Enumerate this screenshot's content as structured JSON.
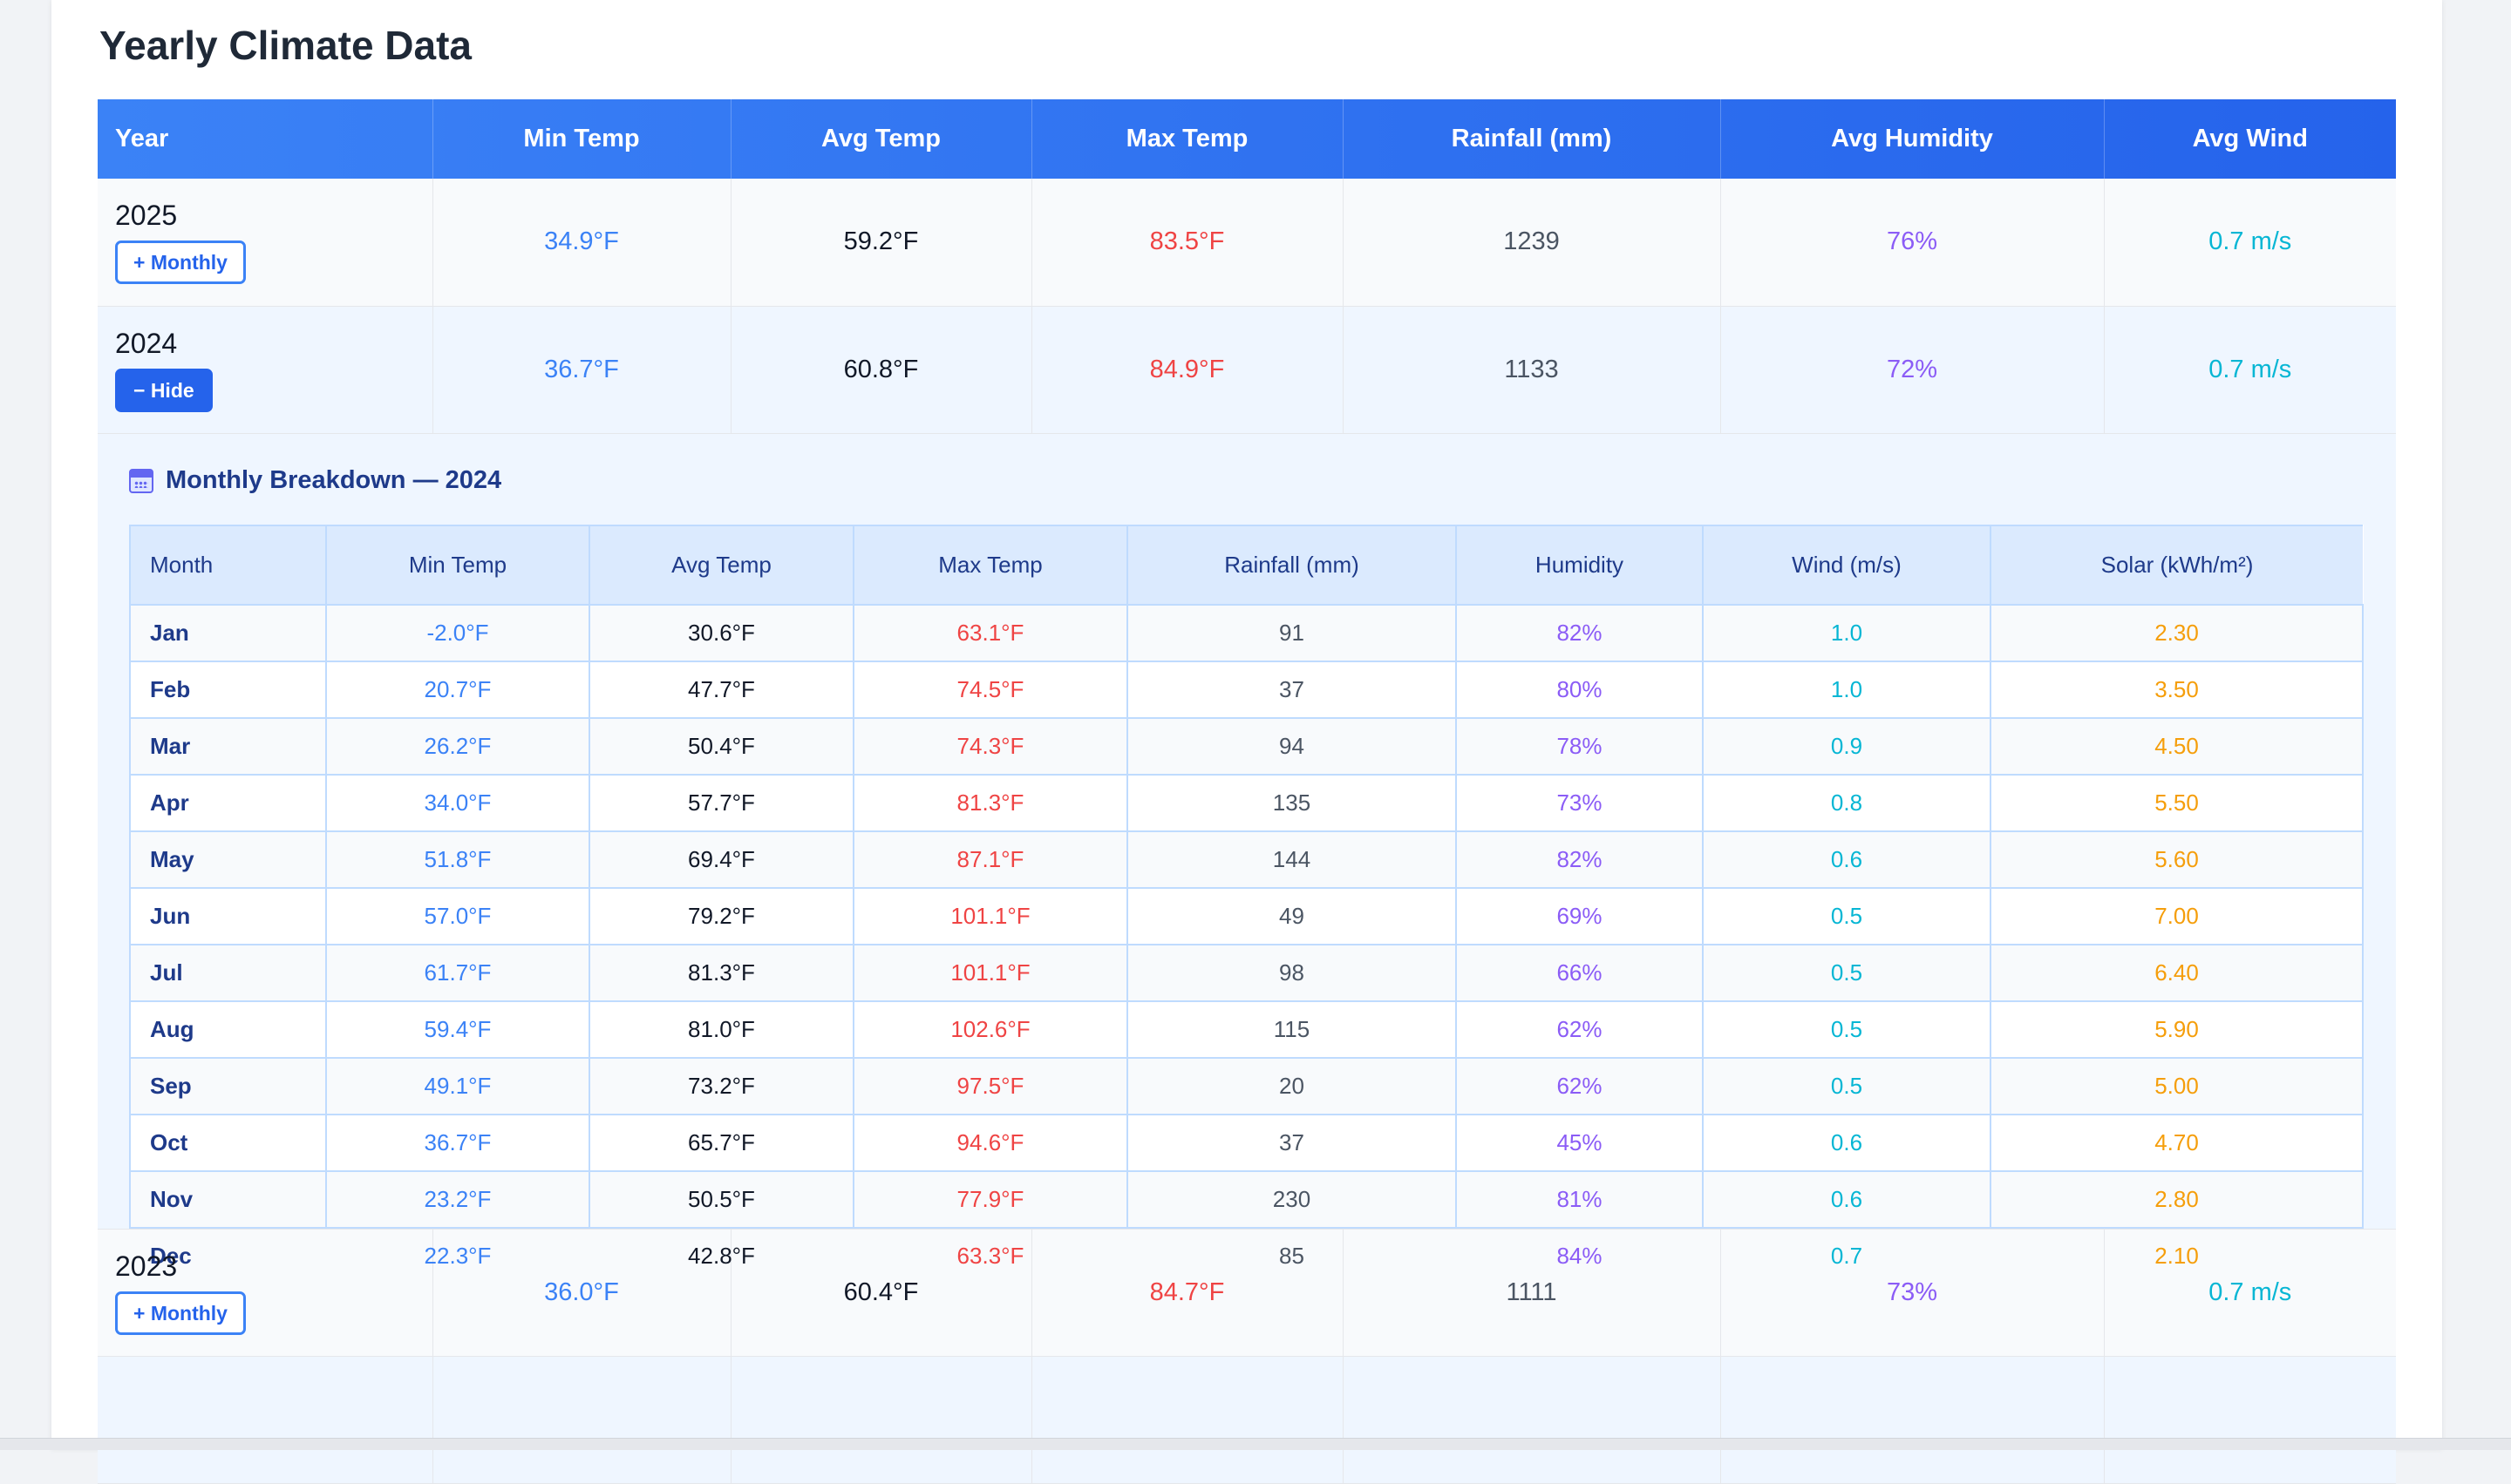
{
  "title": "Yearly Climate Data",
  "headers": [
    "Year",
    "Min Temp",
    "Avg Temp",
    "Max Temp",
    "Rainfall (mm)",
    "Avg Humidity",
    "Avg Wind"
  ],
  "years": [
    {
      "year": "2025",
      "button": "+ Monthly",
      "min": "34.9°F",
      "avg": "59.2°F",
      "max": "83.5°F",
      "rain": "1239",
      "humidity": "76%",
      "wind": "0.7 m/s"
    },
    {
      "year": "2024",
      "button": "− Hide",
      "min": "36.7°F",
      "avg": "60.8°F",
      "max": "84.9°F",
      "rain": "1133",
      "humidity": "72%",
      "wind": "0.7 m/s"
    },
    {
      "year": "2023",
      "button": "+ Monthly",
      "min": "36.0°F",
      "avg": "60.4°F",
      "max": "84.7°F",
      "rain": "1111",
      "humidity": "73%",
      "wind": "0.7 m/s"
    }
  ],
  "breakdown": {
    "title": "Monthly Breakdown — 2024",
    "icon": "calendar-icon",
    "headers": [
      "Month",
      "Min Temp",
      "Avg Temp",
      "Max Temp",
      "Rainfall (mm)",
      "Humidity",
      "Wind (m/s)",
      "Solar (kWh/m²)"
    ],
    "months": [
      {
        "month": "Jan",
        "min": "-2.0°F",
        "avg": "30.6°F",
        "max": "63.1°F",
        "rain": "91",
        "humidity": "82%",
        "wind": "1.0",
        "solar": "2.30"
      },
      {
        "month": "Feb",
        "min": "20.7°F",
        "avg": "47.7°F",
        "max": "74.5°F",
        "rain": "37",
        "humidity": "80%",
        "wind": "1.0",
        "solar": "3.50"
      },
      {
        "month": "Mar",
        "min": "26.2°F",
        "avg": "50.4°F",
        "max": "74.3°F",
        "rain": "94",
        "humidity": "78%",
        "wind": "0.9",
        "solar": "4.50"
      },
      {
        "month": "Apr",
        "min": "34.0°F",
        "avg": "57.7°F",
        "max": "81.3°F",
        "rain": "135",
        "humidity": "73%",
        "wind": "0.8",
        "solar": "5.50"
      },
      {
        "month": "May",
        "min": "51.8°F",
        "avg": "69.4°F",
        "max": "87.1°F",
        "rain": "144",
        "humidity": "82%",
        "wind": "0.6",
        "solar": "5.60"
      },
      {
        "month": "Jun",
        "min": "57.0°F",
        "avg": "79.2°F",
        "max": "101.1°F",
        "rain": "49",
        "humidity": "69%",
        "wind": "0.5",
        "solar": "7.00"
      },
      {
        "month": "Jul",
        "min": "61.7°F",
        "avg": "81.3°F",
        "max": "101.1°F",
        "rain": "98",
        "humidity": "66%",
        "wind": "0.5",
        "solar": "6.40"
      },
      {
        "month": "Aug",
        "min": "59.4°F",
        "avg": "81.0°F",
        "max": "102.6°F",
        "rain": "115",
        "humidity": "62%",
        "wind": "0.5",
        "solar": "5.90"
      },
      {
        "month": "Sep",
        "min": "49.1°F",
        "avg": "73.2°F",
        "max": "97.5°F",
        "rain": "20",
        "humidity": "62%",
        "wind": "0.5",
        "solar": "5.00"
      },
      {
        "month": "Oct",
        "min": "36.7°F",
        "avg": "65.7°F",
        "max": "94.6°F",
        "rain": "37",
        "humidity": "45%",
        "wind": "0.6",
        "solar": "4.70"
      },
      {
        "month": "Nov",
        "min": "23.2°F",
        "avg": "50.5°F",
        "max": "77.9°F",
        "rain": "230",
        "humidity": "81%",
        "wind": "0.6",
        "solar": "2.80"
      },
      {
        "month": "Dec",
        "min": "22.3°F",
        "avg": "42.8°F",
        "max": "63.3°F",
        "rain": "85",
        "humidity": "84%",
        "wind": "0.7",
        "solar": "2.10"
      }
    ]
  },
  "colors": {
    "header_gradient_start": "#3b82f6",
    "header_gradient_end": "#2563eb",
    "min": "#3b82f6",
    "max": "#ef4444",
    "humidity": "#8b5cf6",
    "wind": "#06b6d4",
    "solar": "#f59e0b"
  }
}
